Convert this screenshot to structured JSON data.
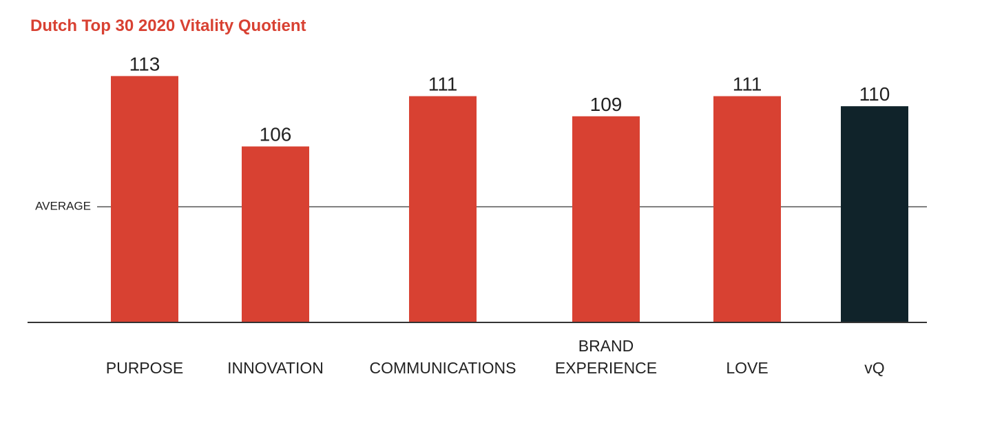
{
  "chart_data": {
    "type": "bar",
    "title": "Dutch Top 30 2020 Vitality Quotient",
    "categories": [
      "PURPOSE",
      "INNOVATION",
      "COMMUNICATIONS",
      "BRAND EXPERIENCE",
      "LOVE",
      "vQ"
    ],
    "values": [
      113,
      106,
      111,
      109,
      111,
      110
    ],
    "colors": [
      "#d84132",
      "#d84132",
      "#d84132",
      "#d84132",
      "#d84132",
      "#10232a"
    ],
    "ylim": [
      88.5,
      117
    ],
    "reference_line": {
      "label": "AVERAGE",
      "value": 100
    }
  }
}
